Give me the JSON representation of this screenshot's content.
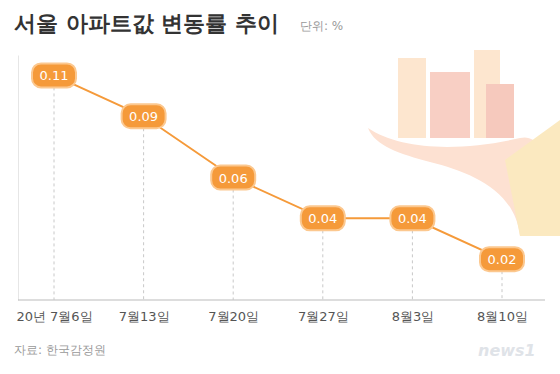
{
  "chart_data": {
    "type": "line",
    "title": "서울 아파트값 변동률 추이",
    "unit_label": "단위: %",
    "source": "자료: 한국감정원",
    "watermark": "news1",
    "categories": [
      "20년 7월6일",
      "7월13일",
      "7월20일",
      "7월27일",
      "8월3일",
      "8월10일"
    ],
    "values": [
      0.11,
      0.09,
      0.06,
      0.04,
      0.04,
      0.02
    ],
    "color": "#f59a3a",
    "ylim": [
      0,
      0.12
    ],
    "data_labels": true,
    "tick_labels": "x",
    "grid": false
  }
}
